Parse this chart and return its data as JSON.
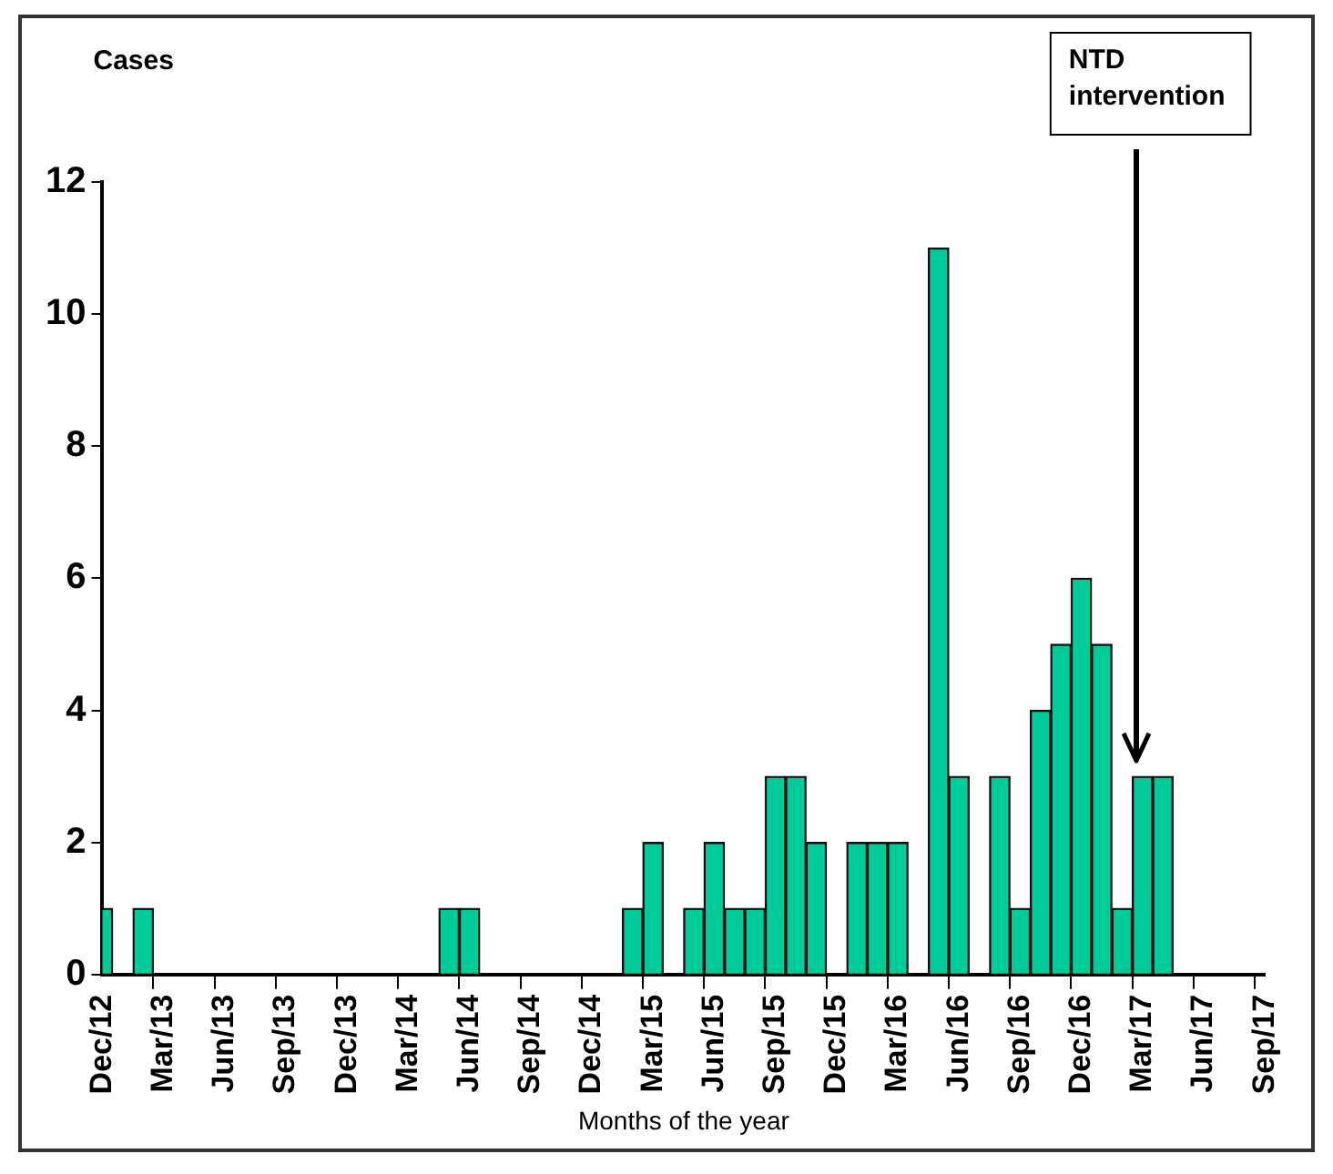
{
  "chart_data": {
    "type": "bar",
    "xlabel": "Months of the year",
    "ylabel": "Cases",
    "categories": [
      "Dec/12",
      null,
      null,
      "Mar/13",
      null,
      null,
      "Jun/13",
      null,
      null,
      "Sep/13",
      null,
      null,
      "Dec/13",
      null,
      null,
      "Mar/14",
      null,
      null,
      "Jun/14",
      null,
      null,
      "Sep/14",
      null,
      null,
      "Dec/14",
      null,
      null,
      "Mar/15",
      null,
      null,
      "Jun/15",
      null,
      null,
      "Sep/15",
      null,
      null,
      "Dec/15",
      null,
      null,
      "Mar/16",
      null,
      null,
      "Jun/16",
      null,
      null,
      "Sep/16",
      null,
      null,
      "Dec/16",
      null,
      null,
      "Mar/17",
      null,
      null,
      "Jun/17",
      null,
      null,
      "Sep/17"
    ],
    "values": [
      1,
      0,
      1,
      0,
      0,
      0,
      0,
      0,
      0,
      0,
      0,
      0,
      0,
      0,
      0,
      0,
      0,
      1,
      1,
      0,
      0,
      0,
      0,
      0,
      0,
      0,
      1,
      2,
      0,
      1,
      2,
      1,
      1,
      3,
      3,
      2,
      0,
      2,
      2,
      2,
      0,
      11,
      3,
      0,
      3,
      1,
      4,
      5,
      6,
      5,
      1,
      3,
      3,
      0,
      0,
      0,
      0,
      0
    ],
    "color": "#00cc99",
    "ylim": [
      0,
      12
    ],
    "yticks": [
      0,
      2,
      4,
      6,
      8,
      10,
      12
    ],
    "grid": false,
    "legend": false,
    "annotations": [
      "NTD intervention"
    ]
  }
}
